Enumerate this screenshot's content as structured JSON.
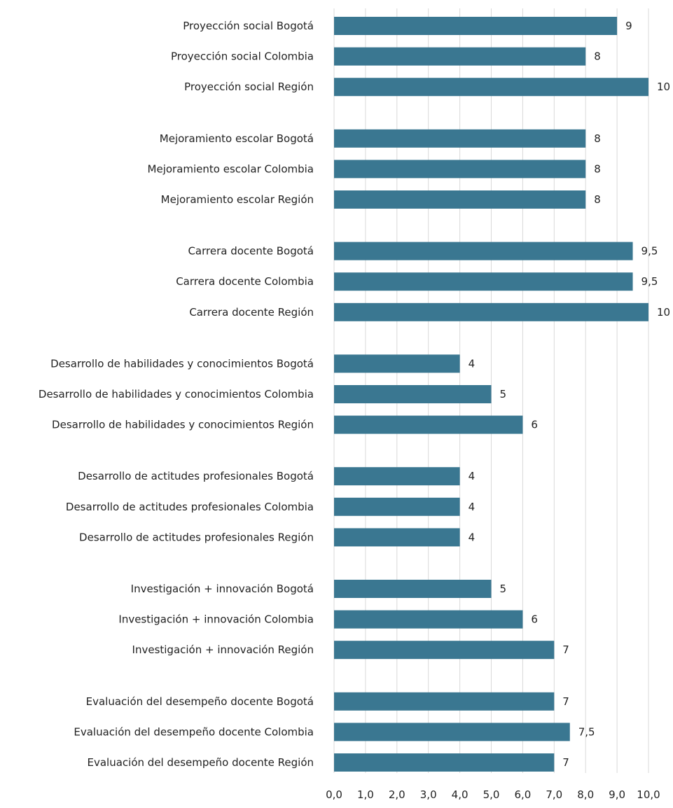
{
  "chart_data": {
    "type": "bar",
    "orientation": "horizontal",
    "bar_color": "#3a7791",
    "xlim": [
      0,
      10
    ],
    "grid": true,
    "x_ticks": [
      "0,0",
      "1,0",
      "2,0",
      "3,0",
      "4,0",
      "5,0",
      "6,0",
      "7,0",
      "8,0",
      "9,0",
      "10,0"
    ],
    "categories": [
      "Proyección social Bogotá",
      "Proyección social Colombia",
      "Proyección social Región",
      "Mejoramiento escolar Bogotá",
      "Mejoramiento escolar Colombia",
      "Mejoramiento escolar Región",
      "Carrera docente Bogotá",
      "Carrera docente Colombia",
      "Carrera docente Región",
      "Desarrollo de habilidades y conocimientos Bogotá",
      "Desarrollo de habilidades y conocimientos Colombia",
      "Desarrollo de habilidades y conocimientos Región",
      "Desarrollo de actitudes profesionales Bogotá",
      "Desarrollo de actitudes profesionales Colombia",
      "Desarrollo de actitudes profesionales Región",
      "Investigación + innovación Bogotá",
      "Investigación + innovación Colombia",
      "Investigación + innovación Región",
      "Evaluación del desempeño docente Bogotá",
      "Evaluación del desempeño docente Colombia",
      "Evaluación del desempeño docente Región"
    ],
    "values": [
      9,
      8,
      10,
      8,
      8,
      8,
      9.5,
      9.5,
      10,
      4,
      5,
      6,
      4,
      4,
      4,
      5,
      6,
      7,
      7,
      7.5,
      7
    ],
    "value_labels": [
      "9",
      "8",
      "10",
      "8",
      "8",
      "8",
      "9,5",
      "9,5",
      "10",
      "4",
      "5",
      "6",
      "4",
      "4",
      "4",
      "5",
      "6",
      "7",
      "7",
      "7,5",
      "7"
    ]
  }
}
